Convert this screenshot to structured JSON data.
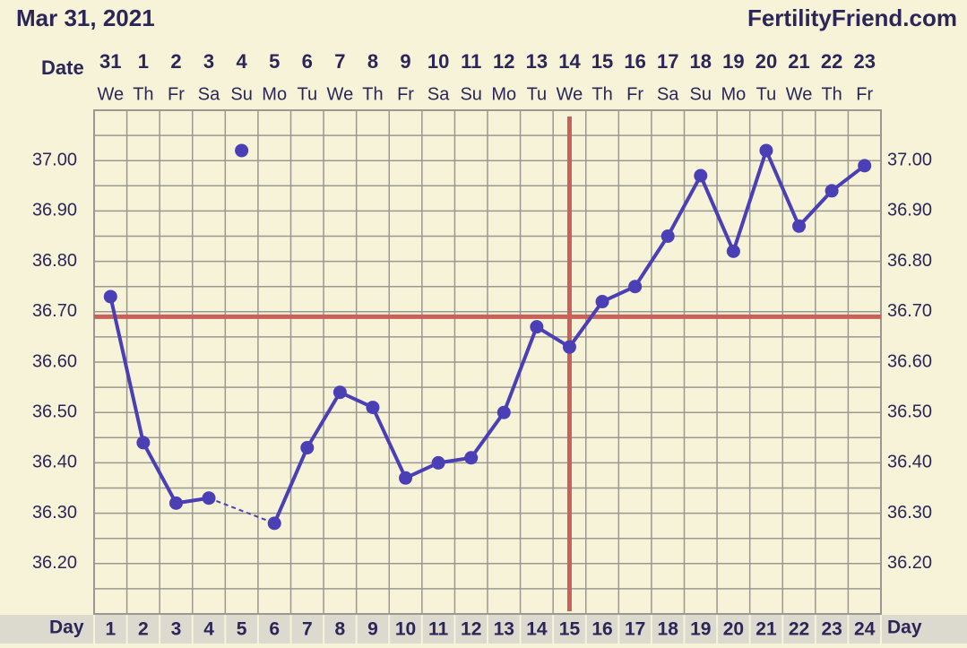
{
  "chart_data": {
    "type": "line",
    "title": "Mar 31, 2021",
    "brand": "FertilityFriend.com",
    "date_label": "Date",
    "day_label": "Day",
    "x": [
      1,
      2,
      3,
      4,
      5,
      6,
      7,
      8,
      9,
      10,
      11,
      12,
      13,
      14,
      15,
      16,
      17,
      18,
      19,
      20,
      21,
      22,
      23,
      24
    ],
    "xlim": [
      0.5,
      24.5
    ],
    "dates": [
      "31",
      "1",
      "2",
      "3",
      "4",
      "5",
      "6",
      "7",
      "8",
      "9",
      "10",
      "11",
      "12",
      "13",
      "14",
      "15",
      "16",
      "17",
      "18",
      "19",
      "20",
      "21",
      "22",
      "23"
    ],
    "weekdays": [
      "We",
      "Th",
      "Fr",
      "Sa",
      "Su",
      "Mo",
      "Tu",
      "We",
      "Th",
      "Fr",
      "Sa",
      "Su",
      "Mo",
      "Tu",
      "We",
      "Th",
      "Fr",
      "Sa",
      "Su",
      "Mo",
      "Tu",
      "We",
      "Th",
      "Fr"
    ],
    "series": [
      {
        "color": "#4a3fb4",
        "values": [
          36.73,
          36.44,
          36.32,
          36.33,
          null,
          36.28,
          36.43,
          36.54,
          36.51,
          36.37,
          36.4,
          36.41,
          36.5,
          36.67,
          36.63,
          36.72,
          36.75,
          36.85,
          36.97,
          36.82,
          37.02,
          36.87,
          36.94,
          36.99
        ]
      }
    ],
    "excluded_points": [
      {
        "x": 5,
        "value": 37.02
      }
    ],
    "coverline": 36.69,
    "ovulation_day": 15,
    "marker_line_color": "#c9605a",
    "ylim": [
      36.1,
      37.1
    ],
    "yticks": [
      {
        "value": 36.2,
        "label": "36.20"
      },
      {
        "value": 36.3,
        "label": "36.30"
      },
      {
        "value": 36.4,
        "label": "36.40"
      },
      {
        "value": 36.5,
        "label": "36.50"
      },
      {
        "value": 36.6,
        "label": "36.60"
      },
      {
        "value": 36.7,
        "label": "36.70"
      },
      {
        "value": 36.8,
        "label": "36.80"
      },
      {
        "value": 36.9,
        "label": "36.90"
      },
      {
        "value": 37.0,
        "label": "37.00"
      }
    ],
    "minor_yticks": [
      36.15,
      36.25,
      36.35,
      36.45,
      36.55,
      36.65,
      36.75,
      36.85,
      36.95,
      37.05
    ],
    "grid": true
  }
}
